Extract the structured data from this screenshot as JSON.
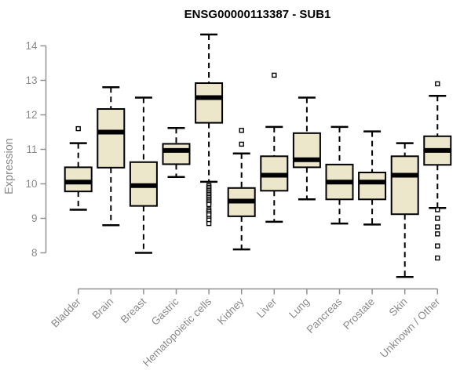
{
  "title": "ENSG00000113387 - SUB1",
  "chart_data": {
    "type": "boxplot",
    "title": "ENSG00000113387 - SUB1",
    "xlabel": "",
    "ylabel": "Expression",
    "ylim": [
      7.2,
      14.4
    ],
    "yticks": [
      8,
      9,
      10,
      11,
      12,
      13,
      14
    ],
    "grid": false,
    "legend": "none",
    "categories": [
      "Bladder",
      "Brain",
      "Breast",
      "Gastric",
      "Hematopoietic cells",
      "Kidney",
      "Liver",
      "Lung",
      "Pancreas",
      "Prostate",
      "Skin",
      "Unknown / Other"
    ],
    "series": [
      {
        "name": "Bladder",
        "whisker_low": 9.25,
        "q1": 9.78,
        "median": 10.05,
        "q3": 10.48,
        "whisker_high": 11.18,
        "outliers": [
          11.6
        ]
      },
      {
        "name": "Brain",
        "whisker_low": 8.8,
        "q1": 10.47,
        "median": 11.5,
        "q3": 12.17,
        "whisker_high": 12.8,
        "outliers": []
      },
      {
        "name": "Breast",
        "whisker_low": 8.0,
        "q1": 9.36,
        "median": 9.95,
        "q3": 10.63,
        "whisker_high": 12.5,
        "outliers": []
      },
      {
        "name": "Gastric",
        "whisker_low": 10.2,
        "q1": 10.57,
        "median": 10.97,
        "q3": 11.16,
        "whisker_high": 11.62,
        "outliers": []
      },
      {
        "name": "Hematopoietic cells",
        "whisker_low": 10.06,
        "q1": 11.77,
        "median": 12.5,
        "q3": 12.92,
        "whisker_high": 14.33,
        "outliers": [
          9.95,
          9.9,
          9.85,
          9.8,
          9.75,
          9.7,
          9.65,
          9.6,
          9.55,
          9.5,
          9.45,
          9.4,
          9.25,
          9.2,
          9.15,
          9.1,
          9.0,
          8.95,
          8.85
        ]
      },
      {
        "name": "Kidney",
        "whisker_low": 8.1,
        "q1": 9.06,
        "median": 9.5,
        "q3": 9.88,
        "whisker_high": 10.88,
        "outliers": [
          11.55,
          11.15
        ]
      },
      {
        "name": "Liver",
        "whisker_low": 8.9,
        "q1": 9.8,
        "median": 10.25,
        "q3": 10.8,
        "whisker_high": 11.65,
        "outliers": [
          13.15
        ]
      },
      {
        "name": "Lung",
        "whisker_low": 9.55,
        "q1": 10.48,
        "median": 10.7,
        "q3": 11.47,
        "whisker_high": 12.5,
        "outliers": []
      },
      {
        "name": "Pancreas",
        "whisker_low": 8.85,
        "q1": 9.55,
        "median": 10.05,
        "q3": 10.56,
        "whisker_high": 11.65,
        "outliers": []
      },
      {
        "name": "Prostate",
        "whisker_low": 8.82,
        "q1": 9.55,
        "median": 10.05,
        "q3": 10.33,
        "whisker_high": 11.52,
        "outliers": []
      },
      {
        "name": "Skin",
        "whisker_low": 7.3,
        "q1": 9.12,
        "median": 10.25,
        "q3": 10.8,
        "whisker_high": 11.18,
        "outliers": []
      },
      {
        "name": "Unknown / Other",
        "whisker_low": 9.3,
        "q1": 10.55,
        "median": 10.97,
        "q3": 11.38,
        "whisker_high": 12.55,
        "outliers": [
          12.9,
          9.25,
          9.0,
          8.75,
          8.55,
          8.2,
          7.85
        ]
      }
    ]
  },
  "colors": {
    "box_fill": "#ECE6CB",
    "box_stroke": "#000000",
    "median": "#000000",
    "axis": "#919191",
    "tick_text": "#8a8a8a",
    "title_text": "#000000",
    "outlier_fill": "#ffffff",
    "background": "#ffffff"
  }
}
